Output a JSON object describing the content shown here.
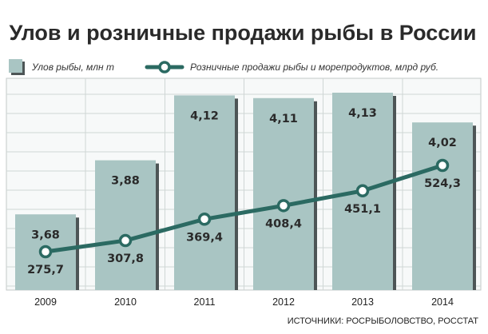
{
  "chart_data": {
    "type": "bar",
    "title": "Улов и розничные продажи рыбы в России",
    "categories": [
      "2009",
      "2010",
      "2011",
      "2012",
      "2013",
      "2014"
    ],
    "series": [
      {
        "name": "Улов рыбы, млн т",
        "type": "bar",
        "values": [
          3.68,
          3.88,
          4.12,
          4.11,
          4.13,
          4.02
        ],
        "labels": [
          "3,68",
          "3,88",
          "4,12",
          "4,11",
          "4,13",
          "4,02"
        ]
      },
      {
        "name": "Розничные продажи рыбы и морепродуктов, млрд руб.",
        "type": "line",
        "values": [
          275.7,
          307.8,
          369.4,
          408.4,
          451.1,
          524.3
        ],
        "labels": [
          "275,7",
          "307,8",
          "369,4",
          "408,4",
          "451,1",
          "524,3"
        ]
      }
    ],
    "grid": true,
    "legend_position": "top",
    "source": "ИСТОЧНИКИ: РОСРЫБОЛОВСТВО, РОССТАТ"
  },
  "colors": {
    "bar_fill": "#a9c5c3",
    "bar_shadow": "#4d5556",
    "line": "#2b6a62",
    "marker_fill": "#ffffff",
    "grid": "#cfd6d5",
    "plot_bg": "#f7f9f9",
    "frame": "#c3c9c8"
  }
}
